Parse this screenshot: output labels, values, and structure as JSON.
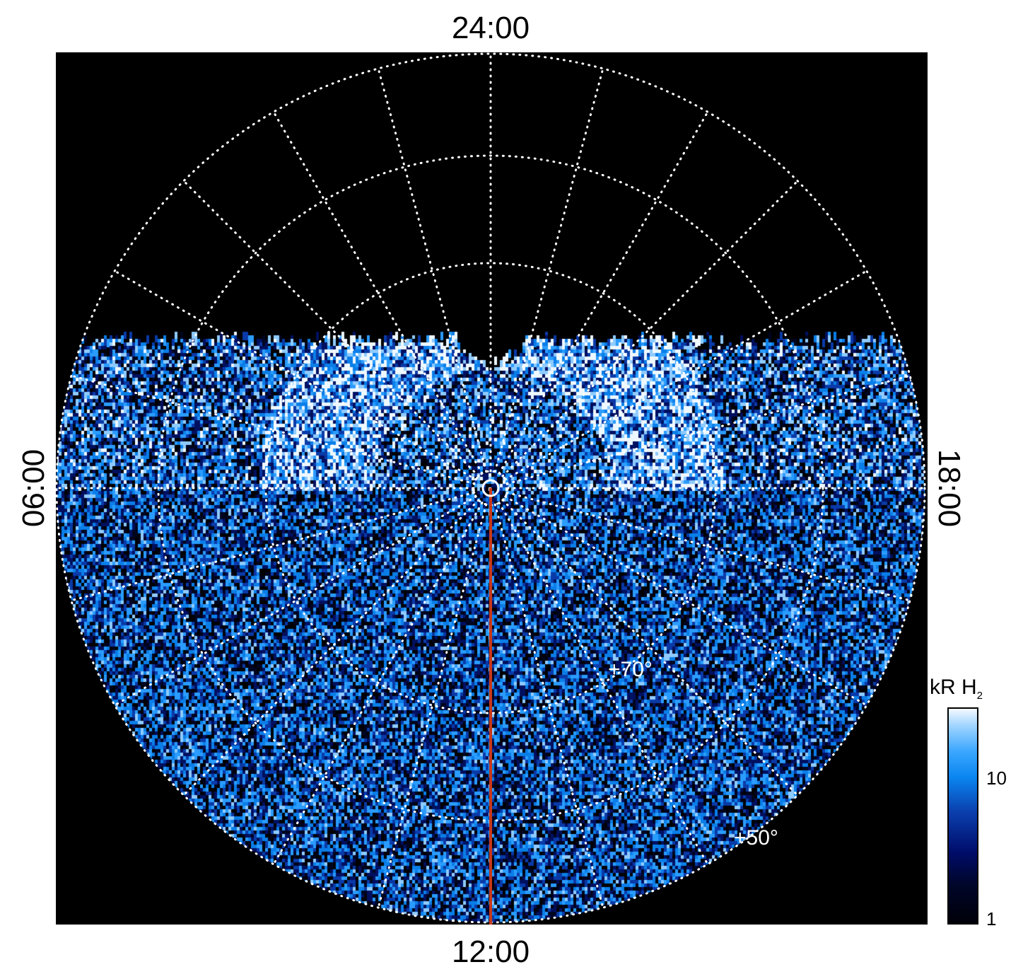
{
  "chart_data": {
    "type": "heatmap",
    "projection": "polar",
    "local_time_labels": {
      "top": "24:00",
      "bottom": "12:00",
      "left": "06:00",
      "right": "18:00"
    },
    "latitude_labels": [
      "+70°",
      "+50°"
    ],
    "latitude_circles_deg": [
      80,
      70,
      60,
      50
    ],
    "meridian_spacing_hours": 1,
    "grid": true,
    "background_color": "#000000",
    "colorbar": {
      "title": "kR H",
      "title_subscript": "2",
      "scale": "log",
      "range": [
        1,
        30
      ],
      "ticks": [
        {
          "value": 1,
          "label": "1"
        },
        {
          "value": 10,
          "label": "10"
        }
      ],
      "colors": [
        "#000008",
        "#000c6a",
        "#0a86f0",
        "#f4faff"
      ],
      "placement": "right"
    },
    "marker_line": {
      "from": "pole",
      "toward_local_time": "12:00",
      "color": "#c8381a"
    },
    "pole_marker": {
      "color": "#ffffff"
    }
  }
}
